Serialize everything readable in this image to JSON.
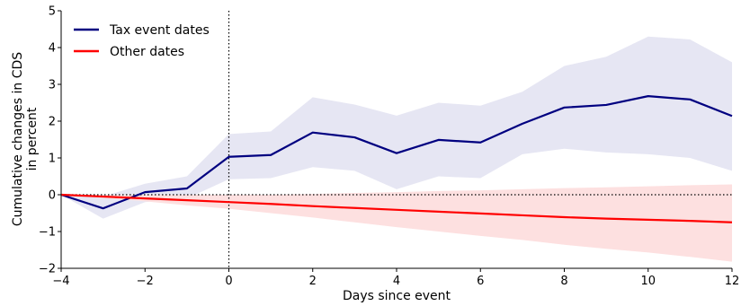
{
  "chart_data": {
    "type": "line",
    "title": "",
    "xlabel": "Days since event",
    "ylabel_line1": "Cumulative changes in CDS",
    "ylabel_line2": "in percent",
    "xlim": [
      -4,
      12
    ],
    "ylim": [
      -2,
      5
    ],
    "xticks": [
      -4,
      -2,
      0,
      2,
      4,
      6,
      8,
      10,
      12
    ],
    "yticks": [
      -2,
      -1,
      0,
      1,
      2,
      3,
      4,
      5
    ],
    "xtick_labels": [
      "−4",
      "−2",
      "0",
      "2",
      "4",
      "6",
      "8",
      "10",
      "12"
    ],
    "ytick_labels": [
      "−2",
      "−1",
      "0",
      "1",
      "2",
      "3",
      "4",
      "5"
    ],
    "event_line_x": 0,
    "zero_line_y": 0,
    "grid": false,
    "legend_position": "top-left",
    "x": [
      -4,
      -3,
      -2,
      -1,
      0,
      1,
      2,
      3,
      4,
      5,
      6,
      7,
      8,
      9,
      10,
      11,
      12
    ],
    "series": [
      {
        "name": "Tax event dates",
        "color": "#000080",
        "band_color": "#e6e6f3",
        "values": [
          0,
          -0.37,
          0.07,
          0.17,
          1.03,
          1.08,
          1.69,
          1.56,
          1.13,
          1.49,
          1.42,
          1.93,
          2.37,
          2.44,
          2.68,
          2.59,
          2.14
        ],
        "lower": [
          0,
          -0.65,
          -0.2,
          -0.1,
          0.42,
          0.45,
          0.75,
          0.65,
          0.15,
          0.5,
          0.45,
          1.1,
          1.25,
          1.15,
          1.1,
          1.0,
          0.65
        ],
        "upper": [
          0,
          -0.05,
          0.3,
          0.5,
          1.65,
          1.72,
          2.65,
          2.45,
          2.15,
          2.5,
          2.42,
          2.8,
          3.5,
          3.75,
          4.3,
          4.22,
          3.6
        ]
      },
      {
        "name": "Other dates",
        "color": "#ff0000",
        "band_color": "#fde0e0",
        "values": [
          0,
          -0.05,
          -0.1,
          -0.15,
          -0.2,
          -0.25,
          -0.31,
          -0.36,
          -0.41,
          -0.46,
          -0.51,
          -0.56,
          -0.61,
          -0.65,
          -0.68,
          -0.71,
          -0.75
        ],
        "lower": [
          0,
          -0.09,
          -0.18,
          -0.29,
          -0.38,
          -0.5,
          -0.62,
          -0.75,
          -0.88,
          -1.0,
          -1.12,
          -1.23,
          -1.36,
          -1.47,
          -1.57,
          -1.69,
          -1.82
        ],
        "upper": [
          0,
          0.0,
          0.0,
          0.0,
          0.0,
          0.0,
          0.02,
          0.05,
          0.07,
          0.1,
          0.12,
          0.15,
          0.18,
          0.2,
          0.23,
          0.26,
          0.28
        ]
      }
    ]
  }
}
